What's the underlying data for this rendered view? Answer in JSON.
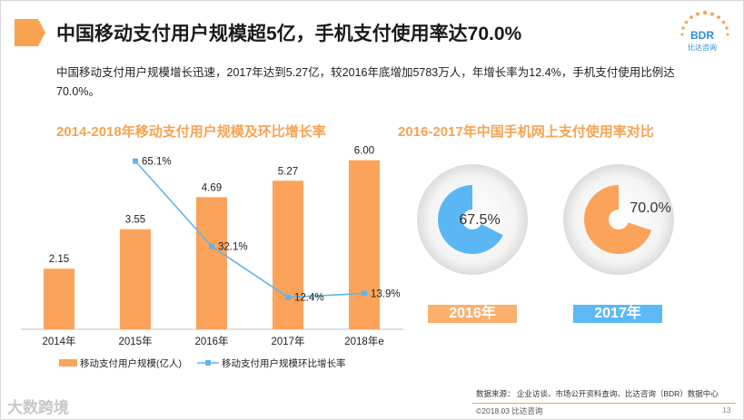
{
  "header": {
    "title": "中国移动支付用户规模超5亿，手机支付使用率达70.0%",
    "logo_text": "BDR",
    "logo_sub": "比达咨询"
  },
  "summary": "中国移动支付用户规模增长迅速，2017年达到5.27亿，较2016年底增加5783万人，年增长率为12.4%，手机支付使用比例达70.0%。",
  "colors": {
    "orange": "#fba35a",
    "blue": "#5bb7f3",
    "line": "#62b4ea",
    "title_orange": "#f7a352"
  },
  "chart_data": [
    {
      "type": "bar",
      "title": "2014-2018年移动支付用户规模及环比增长率",
      "categories": [
        "2014年",
        "2015年",
        "2016年",
        "2017年",
        "2018年e"
      ],
      "series": [
        {
          "name": "移动支付用户规模(亿人)",
          "type": "bar",
          "values": [
            2.15,
            3.55,
            4.69,
            5.27,
            6.0
          ],
          "labels": [
            "2.15",
            "3.55",
            "4.69",
            "5.27",
            "6.00"
          ]
        },
        {
          "name": "移动支付用户规模环比增长率",
          "type": "line",
          "values": [
            null,
            65.1,
            32.1,
            12.4,
            13.9
          ],
          "labels": [
            "",
            "65.1%",
            "32.1%",
            "12.4%",
            "13.9%"
          ]
        }
      ],
      "ylim": [
        0,
        6.6
      ],
      "y2lim": [
        0,
        72
      ],
      "legend": "bottom"
    },
    {
      "type": "pie",
      "title": "2016-2017年中国手机网上支付使用率对比",
      "categories": [
        "2016年",
        "2017年"
      ],
      "values": [
        67.5,
        70.0
      ],
      "labels": [
        "67.5%",
        "70.0%"
      ]
    }
  ],
  "footer": {
    "source": "数据来源：  企业访谈、市场公开资料查询、比达咨询（BDR）数据中心",
    "copyright": "©2018.03 比达咨询",
    "page": "13",
    "watermark": "大数跨境"
  }
}
